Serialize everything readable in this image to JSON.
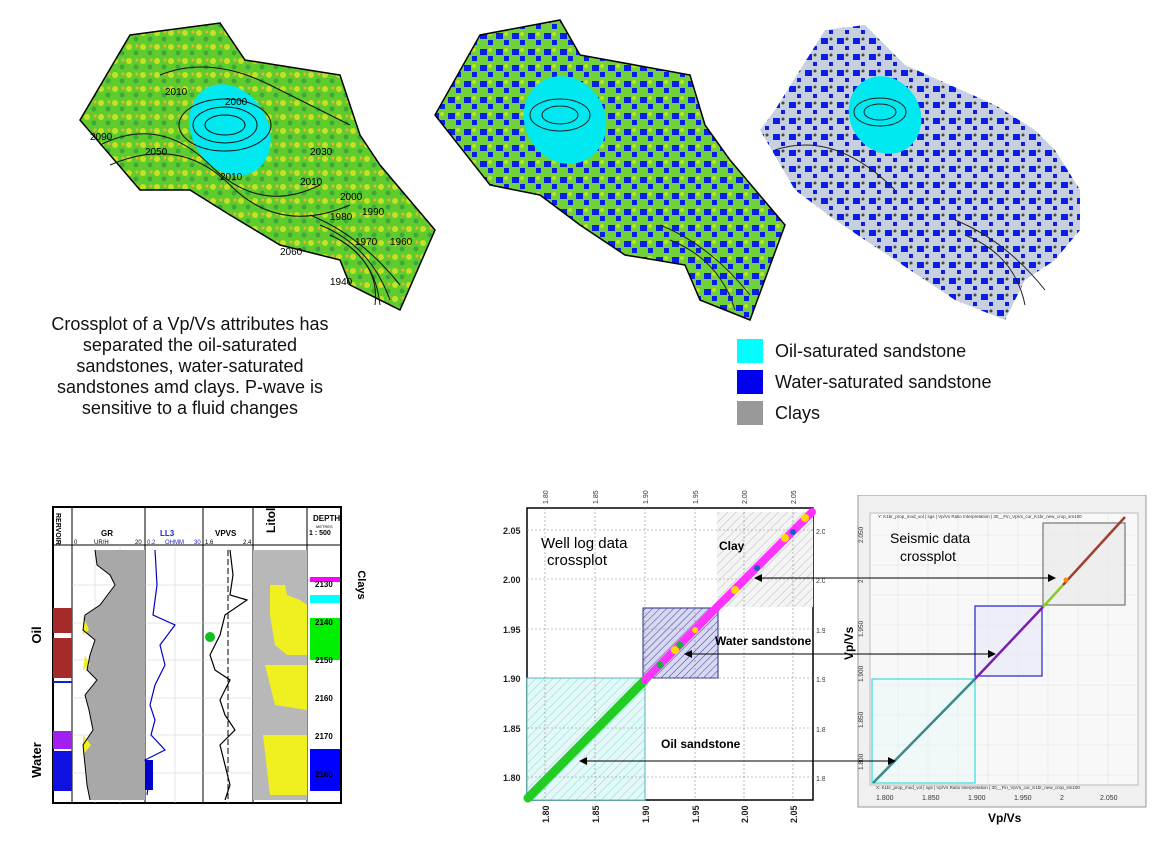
{
  "caption": "Crossplot of a Vp/Vs attributes has separated the oil-saturated sandstones, water-saturated sandstones amd clays. P-wave is sensitive to a fluid changes",
  "map1": {
    "contours": [
      "2010",
      "2000",
      "2050",
      "2010",
      "2030",
      "2010",
      "2000",
      "1990",
      "1980",
      "1970",
      "1960",
      "2090",
      "2060",
      "1940"
    ]
  },
  "legend": [
    {
      "label": "Oil-saturated sandstone",
      "color": "#00ffff"
    },
    {
      "label": "Water-saturated sandstone",
      "color": "#0000ee"
    },
    {
      "label": "Clays",
      "color": "#999999"
    }
  ],
  "welllog": {
    "reservoir_header": "RERVOIR",
    "track_gr": {
      "name": "GR",
      "min": "0",
      "unit": "UR/H",
      "max": "20"
    },
    "track_ll3": {
      "name": "LL3",
      "min": "0.2",
      "unit": "OHMM",
      "max": "30"
    },
    "track_vpvs": {
      "name": "VPVS",
      "min": "1.6",
      "max": "2.4"
    },
    "litho": "Litol",
    "depth_title": "DEPTH",
    "depth_sub": "METRES",
    "depth_scale": "1 : 500",
    "depths": [
      "2130",
      "2140",
      "2150",
      "2160",
      "2170",
      "2180"
    ],
    "label_oil": "Oil",
    "label_water": "Water",
    "label_clays": "Clays"
  },
  "crossplot1": {
    "title_line1": "Well log data",
    "title_line2": "crossplot",
    "label_clay": "Clay",
    "label_water": "Water sandstone",
    "label_oil": "Oil sandstone",
    "ticks": [
      "1.80",
      "1.85",
      "1.90",
      "1.95",
      "2.00",
      "2.05"
    ]
  },
  "crossplot2": {
    "title_line1": "Seismic data",
    "title_line2": "crossplot",
    "header_text": "Y: K1br_prop_mod_vol | sgs | Vp/Vs Ratio Interpretation | 30__Fin_VpVs_cor_K1br_new_crop_sm100",
    "footer_text": "X: K1br_prop_mod_vol | sgs | Vp/Vs Ratio Interpretation | 30__Fin_VpVs_cor_K1br_new_crop_sm100",
    "xlabel": "Vp/Vs",
    "ylabel": "Vp/Vs",
    "xticks": [
      "1.800",
      "1.850",
      "1.900",
      "1.950",
      "2",
      "2.050"
    ],
    "yticks": [
      "1.800",
      "1.850",
      "1.900",
      "1.950",
      "2",
      "2.050"
    ]
  }
}
